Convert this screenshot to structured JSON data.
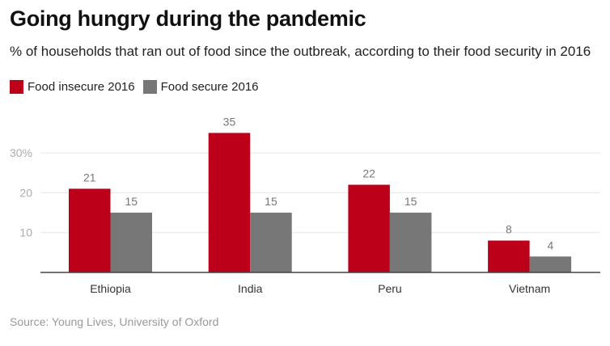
{
  "chart_data": {
    "type": "bar",
    "title": "Going hungry during the pandemic",
    "subtitle": "% of households that ran out of food since the outbreak, according to their food security in 2016",
    "categories": [
      "Ethiopia",
      "India",
      "Peru",
      "Vietnam"
    ],
    "series": [
      {
        "name": "Food insecure 2016",
        "color": "#bd0019",
        "values": [
          21,
          35,
          22,
          8
        ]
      },
      {
        "name": "Food secure 2016",
        "color": "#777777",
        "values": [
          15,
          15,
          15,
          4
        ]
      }
    ],
    "yticks": [
      {
        "value": 10,
        "label": "10"
      },
      {
        "value": 20,
        "label": "20"
      },
      {
        "value": 30,
        "label": "30%"
      }
    ],
    "ylim": [
      0,
      35
    ],
    "grid": true,
    "legend": "top-left",
    "source": "Source: Young Lives, University of Oxford"
  }
}
